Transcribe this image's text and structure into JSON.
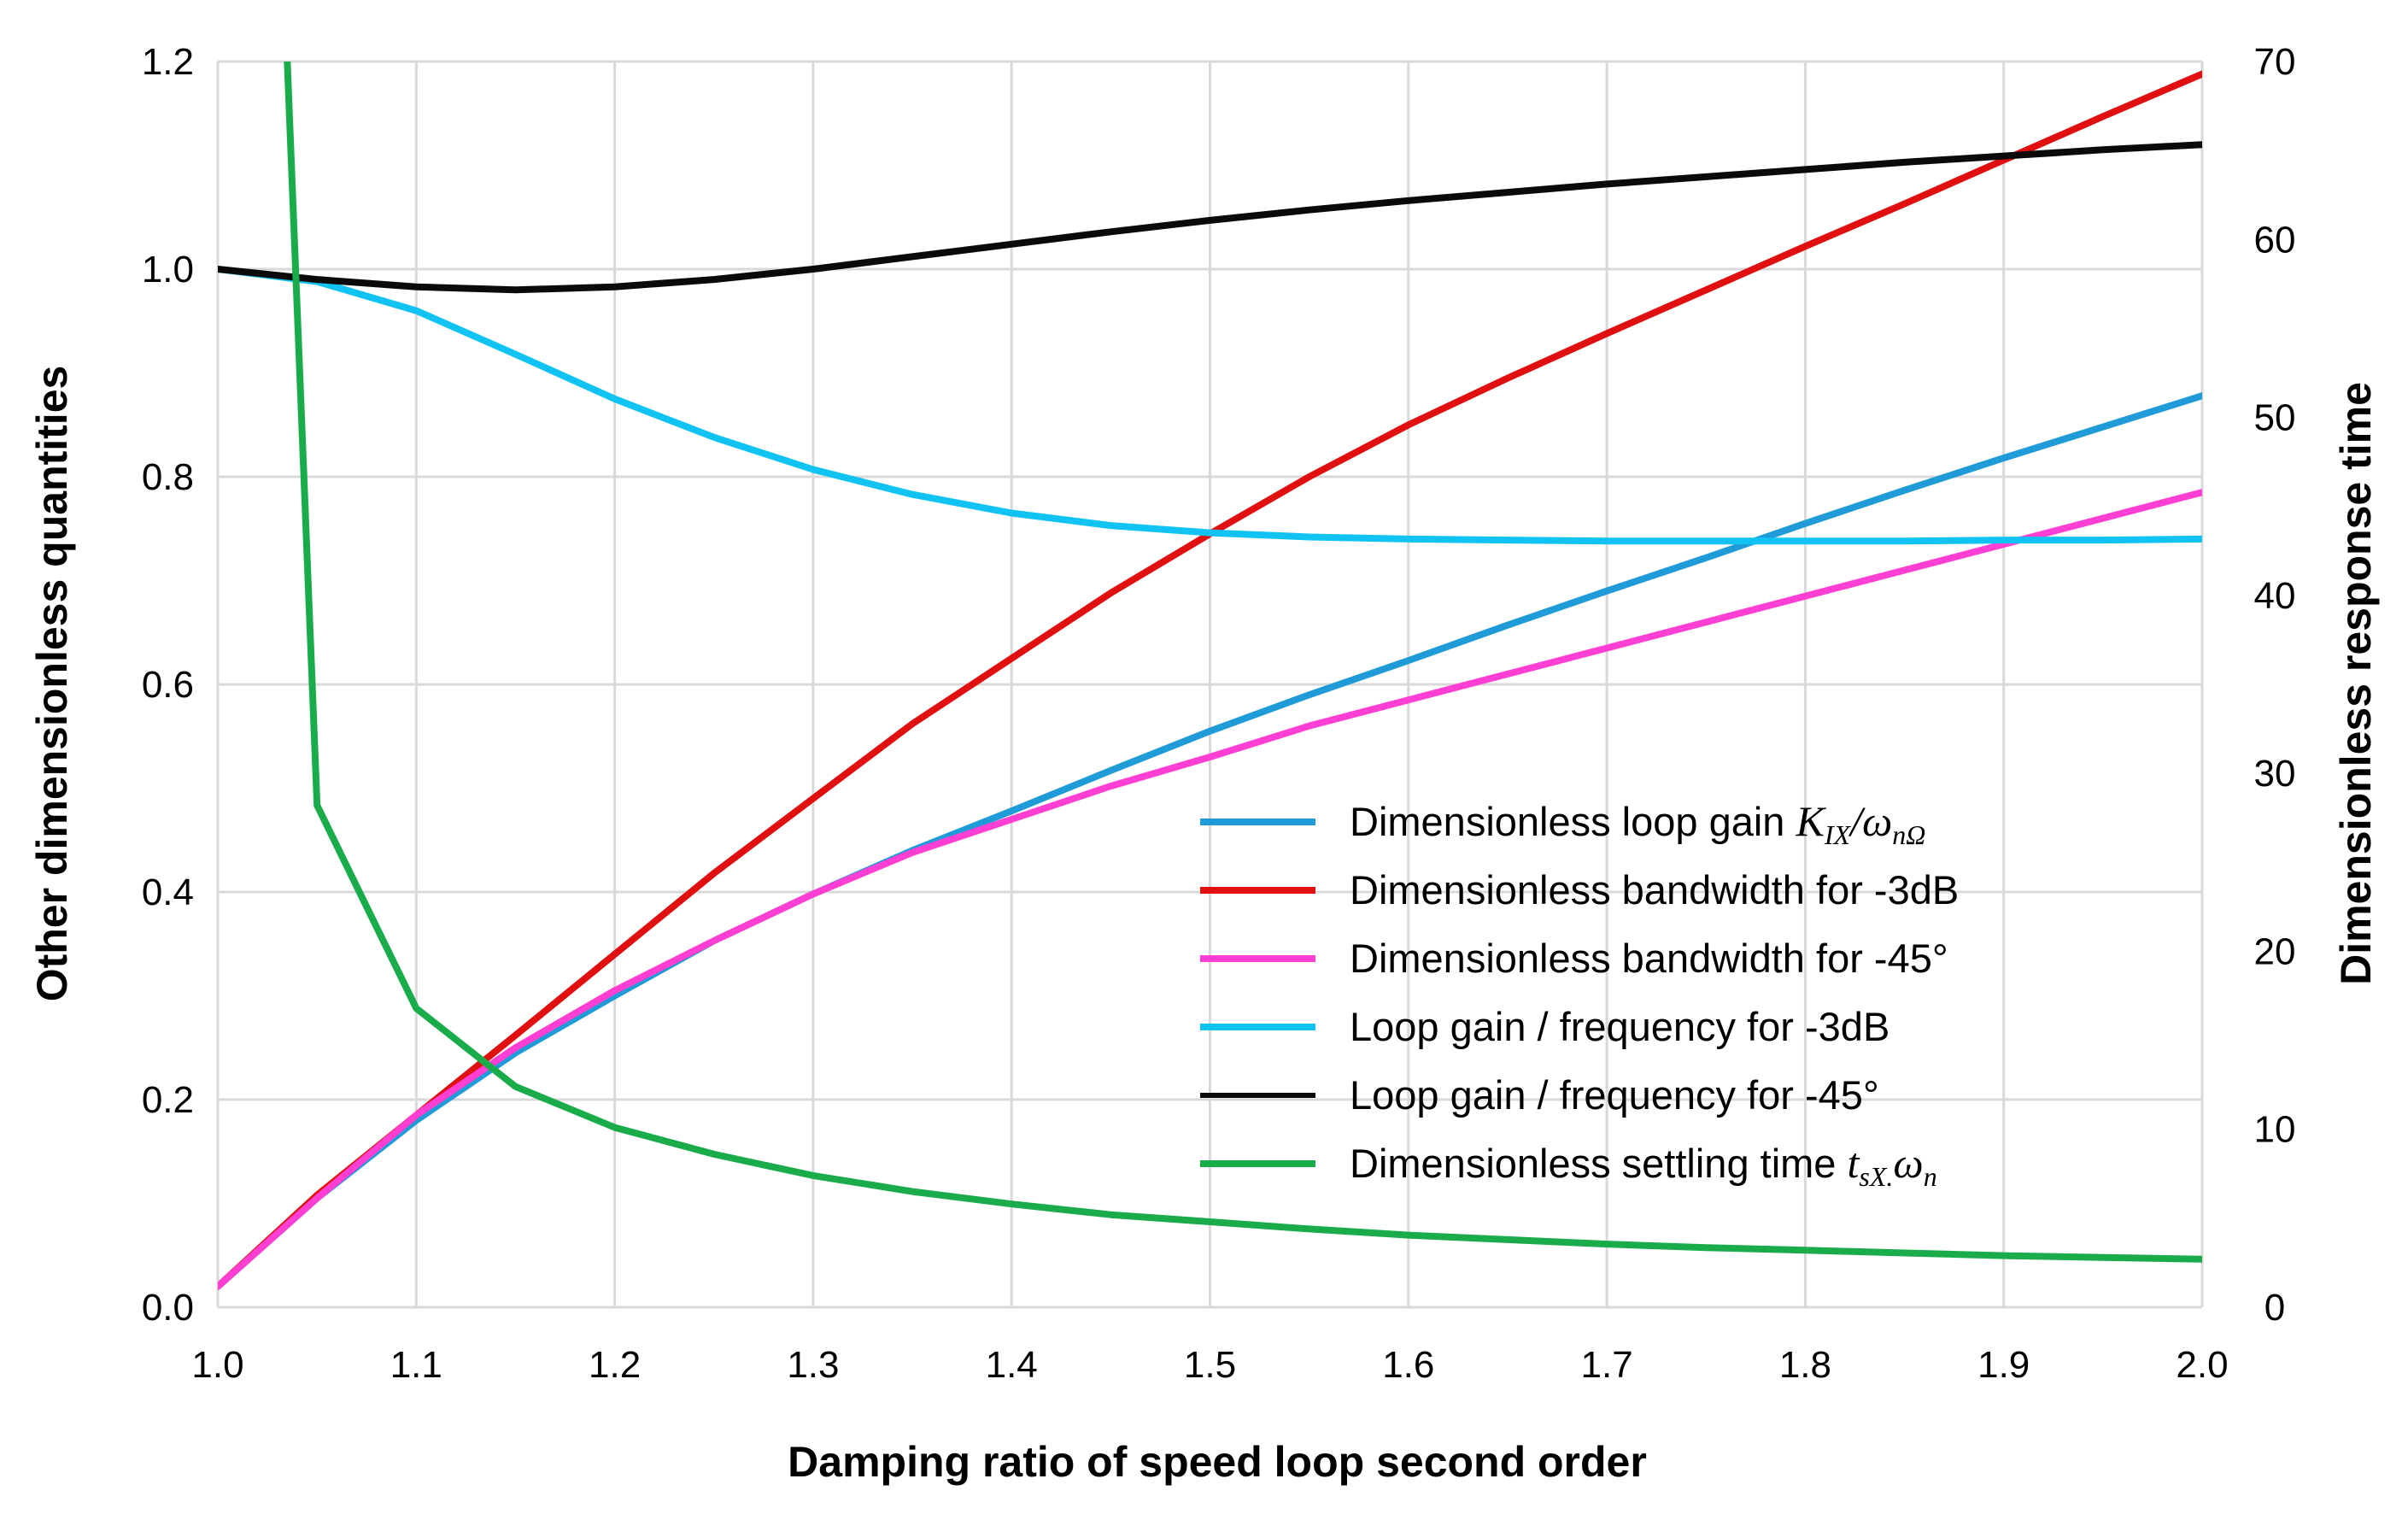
{
  "chart_data": {
    "type": "line",
    "title": "",
    "xlabel": "Damping ratio of speed loop second order",
    "ylabel": "Other dimensionless quantities",
    "y2label": "Dimensionless response time",
    "xlim": [
      1.0,
      2.0
    ],
    "ylim": [
      0.0,
      1.2
    ],
    "y2lim": [
      0,
      70
    ],
    "grid": true,
    "legend_position": "center-right",
    "x_ticks": [
      "1.0",
      "1.1",
      "1.2",
      "1.3",
      "1.4",
      "1.5",
      "1.6",
      "1.7",
      "1.8",
      "1.9",
      "2.0"
    ],
    "y_ticks": [
      "0.0",
      "0.2",
      "0.4",
      "0.6",
      "0.8",
      "1.0",
      "1.2"
    ],
    "y2_ticks": [
      "0",
      "10",
      "20",
      "30",
      "40",
      "50",
      "60",
      "70"
    ],
    "series": [
      {
        "name": "Dimensionless loop gain",
        "legend_prefix": "Dimensionless loop gain ",
        "legend_math": "K",
        "legend_math_sub": "IX",
        "legend_math_2": "/ω",
        "legend_math_2_sub": "nΩ",
        "color": "#1f9bd7",
        "axis": "left",
        "x": [
          1.0,
          1.05,
          1.1,
          1.15,
          1.2,
          1.25,
          1.3,
          1.35,
          1.4,
          1.45,
          1.5,
          1.55,
          1.6,
          1.65,
          1.7,
          1.75,
          1.8,
          1.85,
          1.9,
          1.95,
          2.0
        ],
        "values": [
          0.02,
          0.105,
          0.18,
          0.245,
          0.3,
          0.353,
          0.398,
          0.44,
          0.478,
          0.517,
          0.555,
          0.59,
          0.623,
          0.657,
          0.69,
          0.722,
          0.755,
          0.787,
          0.818,
          0.848,
          0.878
        ]
      },
      {
        "name": "Dimensionless bandwidth for -3dB",
        "legend_prefix": "Dimensionless bandwidth for -3dB",
        "color": "#e01010",
        "axis": "left",
        "x": [
          1.0,
          1.05,
          1.1,
          1.15,
          1.2,
          1.25,
          1.3,
          1.35,
          1.4,
          1.45,
          1.5,
          1.55,
          1.6,
          1.65,
          1.7,
          1.75,
          1.8,
          1.85,
          1.9,
          1.95,
          2.0
        ],
        "values": [
          0.02,
          0.108,
          0.185,
          0.262,
          0.34,
          0.418,
          0.49,
          0.562,
          0.625,
          0.688,
          0.745,
          0.8,
          0.85,
          0.895,
          0.938,
          0.98,
          1.022,
          1.063,
          1.105,
          1.147,
          1.188
        ]
      },
      {
        "name": "Dimensionless bandwidth for -45°",
        "legend_prefix": "Dimensionless bandwidth for -45°",
        "color": "#ff3fd3",
        "axis": "left",
        "x": [
          1.0,
          1.05,
          1.1,
          1.15,
          1.2,
          1.25,
          1.3,
          1.35,
          1.4,
          1.45,
          1.5,
          1.55,
          1.6,
          1.65,
          1.7,
          1.75,
          1.8,
          1.85,
          1.9,
          1.95,
          2.0
        ],
        "values": [
          0.02,
          0.105,
          0.185,
          0.25,
          0.305,
          0.353,
          0.398,
          0.438,
          0.47,
          0.502,
          0.53,
          0.56,
          0.585,
          0.61,
          0.635,
          0.66,
          0.685,
          0.71,
          0.735,
          0.76,
          0.785
        ]
      },
      {
        "name": "Loop gain / frequency for -3dB",
        "legend_prefix": "Loop gain / frequency for -3dB",
        "color": "#10c3f2",
        "axis": "left",
        "x": [
          1.0,
          1.05,
          1.1,
          1.15,
          1.2,
          1.25,
          1.3,
          1.35,
          1.4,
          1.45,
          1.5,
          1.55,
          1.6,
          1.65,
          1.7,
          1.75,
          1.8,
          1.85,
          1.9,
          1.95,
          2.0
        ],
        "values": [
          1.0,
          0.988,
          0.96,
          0.918,
          0.875,
          0.838,
          0.807,
          0.783,
          0.765,
          0.753,
          0.746,
          0.742,
          0.74,
          0.739,
          0.738,
          0.738,
          0.738,
          0.738,
          0.739,
          0.739,
          0.74
        ]
      },
      {
        "name": "Loop gain / frequency for -45°",
        "legend_prefix": "Loop gain / frequency for -45°",
        "color": "#0a0a0a",
        "axis": "left",
        "x": [
          1.0,
          1.05,
          1.1,
          1.15,
          1.2,
          1.25,
          1.3,
          1.35,
          1.4,
          1.45,
          1.5,
          1.55,
          1.6,
          1.65,
          1.7,
          1.75,
          1.8,
          1.85,
          1.9,
          1.95,
          2.0
        ],
        "values": [
          1.0,
          0.99,
          0.983,
          0.98,
          0.983,
          0.99,
          1.0,
          1.012,
          1.024,
          1.036,
          1.047,
          1.057,
          1.066,
          1.074,
          1.082,
          1.089,
          1.096,
          1.103,
          1.109,
          1.115,
          1.12
        ]
      },
      {
        "name": "Dimensionless settling time",
        "legend_prefix": "Dimensionless settling time ",
        "legend_math": "t",
        "legend_math_sub": "sX.",
        "legend_math_2": "ω",
        "legend_math_2_sub": "n",
        "color": "#1aac4b",
        "axis": "right",
        "x": [
          1.035,
          1.05,
          1.1,
          1.15,
          1.2,
          1.25,
          1.3,
          1.35,
          1.4,
          1.45,
          1.5,
          1.55,
          1.6,
          1.65,
          1.7,
          1.75,
          1.8,
          1.85,
          1.9,
          1.95,
          2.0
        ],
        "values": [
          70,
          28.2,
          16.8,
          12.4,
          10.1,
          8.6,
          7.4,
          6.5,
          5.8,
          5.2,
          4.8,
          4.4,
          4.05,
          3.8,
          3.55,
          3.35,
          3.2,
          3.05,
          2.9,
          2.8,
          2.7
        ]
      }
    ]
  }
}
